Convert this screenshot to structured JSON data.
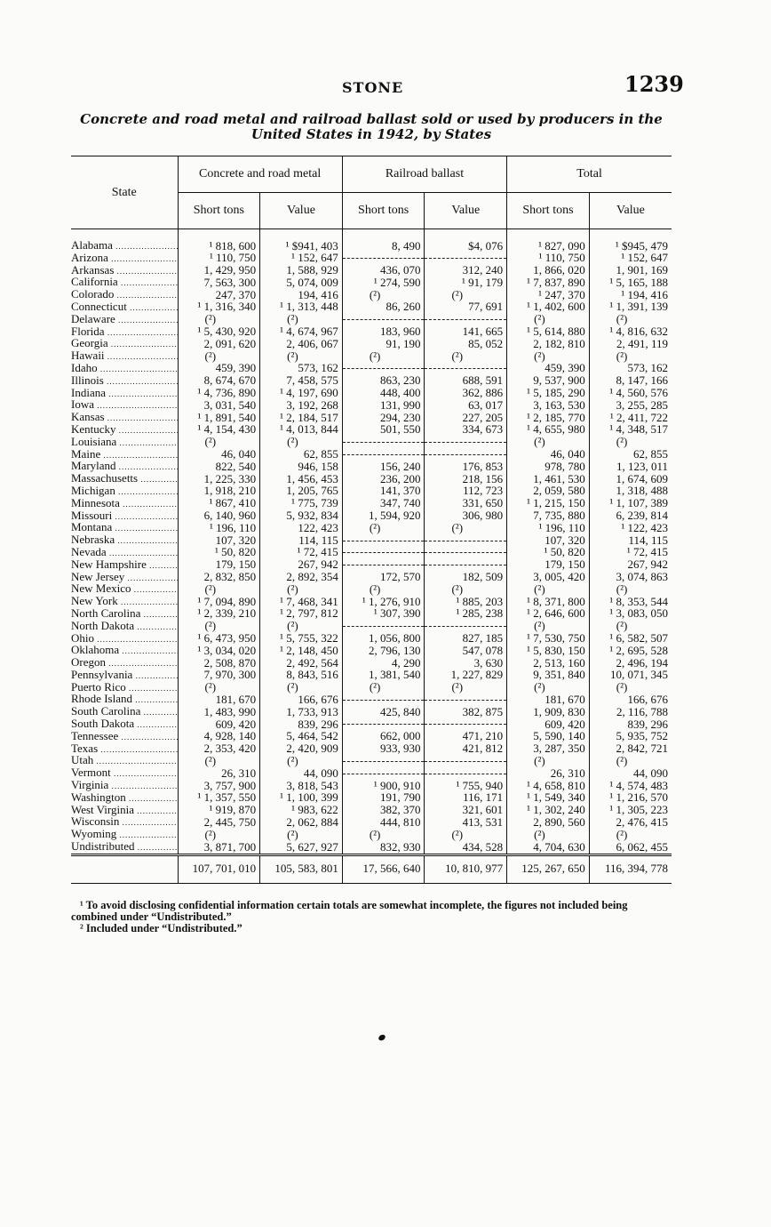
{
  "header": {
    "running_title": "STONE",
    "page_number": "1239"
  },
  "title": "Concrete and road metal and railroad ballast sold or used by producers in the United States in 1942, by States",
  "table": {
    "state_header": "State",
    "groups": [
      "Concrete and road metal",
      "Railroad ballast",
      "Total"
    ],
    "subheaders": [
      "Short tons",
      "Value",
      "Short tons",
      "Value",
      "Short tons",
      "Value"
    ],
    "rows": [
      [
        "Alabama",
        "¹ 818, 600",
        "¹ $941, 403",
        "8, 490",
        "$4, 076",
        "¹ 827, 090",
        "¹ $945, 479"
      ],
      [
        "Arizona",
        "¹ 110, 750",
        "¹ 152, 647",
        "-",
        "-",
        "¹ 110, 750",
        "¹ 152, 647"
      ],
      [
        "Arkansas",
        "1, 429, 950",
        "1, 588, 929",
        "436, 070",
        "312, 240",
        "1, 866, 020",
        "1, 901, 169"
      ],
      [
        "California",
        "7, 563, 300",
        "5, 074, 009",
        "¹ 274, 590",
        "¹ 91, 179",
        "¹ 7, 837, 890",
        "¹ 5, 165, 188"
      ],
      [
        "Colorado",
        "247, 370",
        "194, 416",
        "(²)",
        "(²)",
        "¹ 247, 370",
        "¹ 194, 416"
      ],
      [
        "Connecticut",
        "¹ 1, 316, 340",
        "¹ 1, 313, 448",
        "86, 260",
        "77, 691",
        "¹ 1, 402, 600",
        "¹ 1, 391, 139"
      ],
      [
        "Delaware",
        "(²)",
        "(²)",
        "-",
        "-",
        "(²)",
        "(²)"
      ],
      [
        "Florida",
        "¹ 5, 430, 920",
        "¹ 4, 674, 967",
        "183, 960",
        "141, 665",
        "¹ 5, 614, 880",
        "¹ 4, 816, 632"
      ],
      [
        "Georgia",
        "2, 091, 620",
        "2, 406, 067",
        "91, 190",
        "85, 052",
        "2, 182, 810",
        "2, 491, 119"
      ],
      [
        "Hawaii",
        "(²)",
        "(²)",
        "(²)",
        "(²)",
        "(²)",
        "(²)"
      ],
      [
        "Idaho",
        "459, 390",
        "573, 162",
        "-",
        "-",
        "459, 390",
        "573, 162"
      ],
      [
        "Illinois",
        "8, 674, 670",
        "7, 458, 575",
        "863, 230",
        "688, 591",
        "9, 537, 900",
        "8, 147, 166"
      ],
      [
        "Indiana",
        "¹ 4, 736, 890",
        "¹ 4, 197, 690",
        "448, 400",
        "362, 886",
        "¹ 5, 185, 290",
        "¹ 4, 560, 576"
      ],
      [
        "Iowa",
        "3, 031, 540",
        "3, 192, 268",
        "131, 990",
        "63, 017",
        "3, 163, 530",
        "3, 255, 285"
      ],
      [
        "Kansas",
        "¹ 1, 891, 540",
        "¹ 2, 184, 517",
        "294, 230",
        "227, 205",
        "¹ 2, 185, 770",
        "¹ 2, 411, 722"
      ],
      [
        "Kentucky",
        "¹ 4, 154, 430",
        "¹ 4, 013, 844",
        "501, 550",
        "334, 673",
        "¹ 4, 655, 980",
        "¹ 4, 348, 517"
      ],
      [
        "Louisiana",
        "(²)",
        "(²)",
        "-",
        "-",
        "(²)",
        "(²)"
      ],
      [
        "Maine",
        "46, 040",
        "62, 855",
        "-",
        "-",
        "46, 040",
        "62, 855"
      ],
      [
        "Maryland",
        "822, 540",
        "946, 158",
        "156, 240",
        "176, 853",
        "978, 780",
        "1, 123, 011"
      ],
      [
        "Massachusetts",
        "1, 225, 330",
        "1, 456, 453",
        "236, 200",
        "218, 156",
        "1, 461, 530",
        "1, 674, 609"
      ],
      [
        "Michigan",
        "1, 918, 210",
        "1, 205, 765",
        "141, 370",
        "112, 723",
        "2, 059, 580",
        "1, 318, 488"
      ],
      [
        "Minnesota",
        "¹ 867, 410",
        "¹ 775, 739",
        "347, 740",
        "331, 650",
        "¹ 1, 215, 150",
        "¹ 1, 107, 389"
      ],
      [
        "Missouri",
        "6, 140, 960",
        "5, 932, 834",
        "1, 594, 920",
        "306, 980",
        "7, 735, 880",
        "6, 239, 814"
      ],
      [
        "Montana",
        "¹ 196, 110",
        "122, 423",
        "(²)",
        "(²)",
        "¹ 196, 110",
        "¹ 122, 423"
      ],
      [
        "Nebraska",
        "107, 320",
        "114, 115",
        "-",
        "-",
        "107, 320",
        "114, 115"
      ],
      [
        "Nevada",
        "¹ 50, 820",
        "¹ 72, 415",
        "-",
        "-",
        "¹ 50, 820",
        "¹ 72, 415"
      ],
      [
        "New Hampshire",
        "179, 150",
        "267, 942",
        "-",
        "-",
        "179, 150",
        "267, 942"
      ],
      [
        "New Jersey",
        "2, 832, 850",
        "2, 892, 354",
        "172, 570",
        "182, 509",
        "3, 005, 420",
        "3, 074, 863"
      ],
      [
        "New Mexico",
        "(²)",
        "(²)",
        "(²)",
        "(²)",
        "(²)",
        "(²)"
      ],
      [
        "New York",
        "¹ 7, 094, 890",
        "¹ 7, 468, 341",
        "¹ 1, 276, 910",
        "¹ 885, 203",
        "¹ 8, 371, 800",
        "¹ 8, 353, 544"
      ],
      [
        "North Carolina",
        "¹ 2, 339, 210",
        "¹ 2, 797, 812",
        "¹ 307, 390",
        "¹ 285, 238",
        "¹ 2, 646, 600",
        "¹ 3, 083, 050"
      ],
      [
        "North Dakota",
        "(²)",
        "(²)",
        "-",
        "-",
        "(²)",
        "(²)"
      ],
      [
        "Ohio",
        "¹ 6, 473, 950",
        "¹ 5, 755, 322",
        "1, 056, 800",
        "827, 185",
        "¹ 7, 530, 750",
        "¹ 6, 582, 507"
      ],
      [
        "Oklahoma",
        "¹ 3, 034, 020",
        "¹ 2, 148, 450",
        "2, 796, 130",
        "547, 078",
        "¹ 5, 830, 150",
        "¹ 2, 695, 528"
      ],
      [
        "Oregon",
        "2, 508, 870",
        "2, 492, 564",
        "4, 290",
        "3, 630",
        "2, 513, 160",
        "2, 496, 194"
      ],
      [
        "Pennsylvania",
        "7, 970, 300",
        "8, 843, 516",
        "1, 381, 540",
        "1, 227, 829",
        "9, 351, 840",
        "10, 071, 345"
      ],
      [
        "Puerto Rico",
        "(²)",
        "(²)",
        "(²)",
        "(²)",
        "(²)",
        "(²)"
      ],
      [
        "Rhode Island",
        "181, 670",
        "166, 676",
        "-",
        "-",
        "181, 670",
        "166, 676"
      ],
      [
        "South Carolina",
        "1, 483, 990",
        "1, 733, 913",
        "425, 840",
        "382, 875",
        "1, 909, 830",
        "2, 116, 788"
      ],
      [
        "South Dakota",
        "609, 420",
        "839, 296",
        "-",
        "-",
        "609, 420",
        "839, 296"
      ],
      [
        "Tennessee",
        "4, 928, 140",
        "5, 464, 542",
        "662, 000",
        "471, 210",
        "5, 590, 140",
        "5, 935, 752"
      ],
      [
        "Texas",
        "2, 353, 420",
        "2, 420, 909",
        "933, 930",
        "421, 812",
        "3, 287, 350",
        "2, 842, 721"
      ],
      [
        "Utah",
        "(²)",
        "(²)",
        "-",
        "-",
        "(²)",
        "(²)"
      ],
      [
        "Vermont",
        "26, 310",
        "44, 090",
        "-",
        "-",
        "26, 310",
        "44, 090"
      ],
      [
        "Virginia",
        "3, 757, 900",
        "3, 818, 543",
        "¹ 900, 910",
        "¹ 755, 940",
        "¹ 4, 658, 810",
        "¹ 4, 574, 483"
      ],
      [
        "Washington",
        "¹ 1, 357, 550",
        "¹ 1, 100, 399",
        "191, 790",
        "116, 171",
        "¹ 1, 549, 340",
        "¹ 1, 216, 570"
      ],
      [
        "West Virginia",
        "¹ 919, 870",
        "¹ 983, 622",
        "382, 370",
        "321, 601",
        "¹ 1, 302, 240",
        "¹ 1, 305, 223"
      ],
      [
        "Wisconsin",
        "2, 445, 750",
        "2, 062, 884",
        "444, 810",
        "413, 531",
        "2, 890, 560",
        "2, 476, 415"
      ],
      [
        "Wyoming",
        "(²)",
        "(²)",
        "(²)",
        "(²)",
        "(²)",
        "(²)"
      ],
      [
        "Undistributed",
        "3, 871, 700",
        "5, 627, 927",
        "832, 930",
        "434, 528",
        "4, 704, 630",
        "6, 062, 455"
      ]
    ],
    "totals": [
      "107, 701, 010",
      "105, 583, 801",
      "17, 566, 640",
      "10, 810, 977",
      "125, 267, 650",
      "116, 394, 778"
    ]
  },
  "footnotes": [
    "¹ To avoid disclosing confidential information certain totals are somewhat incomplete, the figures not included being combined under “Undistributed.”",
    "² Included under “Undistributed.”"
  ]
}
